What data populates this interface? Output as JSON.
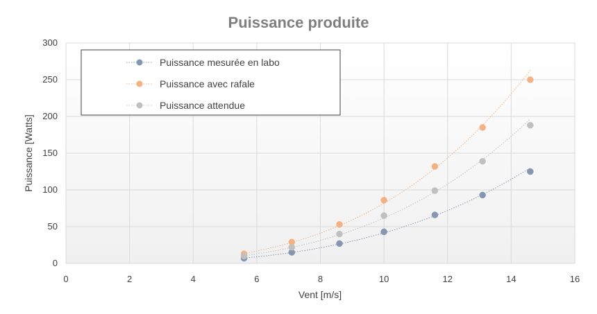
{
  "chart_data": {
    "type": "scatter",
    "title": "Puissance produite",
    "xlabel": "Vent [m/s]",
    "ylabel": "Puissance [Watts]",
    "xlim": [
      0,
      16
    ],
    "ylim": [
      0,
      300
    ],
    "xticks": [
      "0",
      "2",
      "4",
      "6",
      "8",
      "10",
      "12",
      "14",
      "16"
    ],
    "yticks": [
      "0",
      "50",
      "100",
      "150",
      "200",
      "250",
      "300"
    ],
    "grid": true,
    "legend_position": "top-left",
    "trendlines": "dotted",
    "series": [
      {
        "name": "Puissance mesurée en labo",
        "color": "#8496b0",
        "x": [
          5.6,
          7.1,
          8.6,
          10.0,
          11.6,
          13.1,
          14.6
        ],
        "y": [
          7,
          15,
          27,
          43,
          66,
          93,
          125
        ]
      },
      {
        "name": "Puissance avec rafale",
        "color": "#f4b183",
        "x": [
          5.6,
          7.1,
          8.6,
          10.0,
          11.6,
          13.1,
          14.6
        ],
        "y": [
          13,
          29,
          53,
          86,
          132,
          185,
          250
        ]
      },
      {
        "name": "Puissance attendue",
        "color": "#c0c0c0",
        "x": [
          5.6,
          7.1,
          8.6,
          10.0,
          11.6,
          13.1,
          14.6
        ],
        "y": [
          10,
          22,
          40,
          65,
          99,
          139,
          188
        ]
      }
    ]
  }
}
